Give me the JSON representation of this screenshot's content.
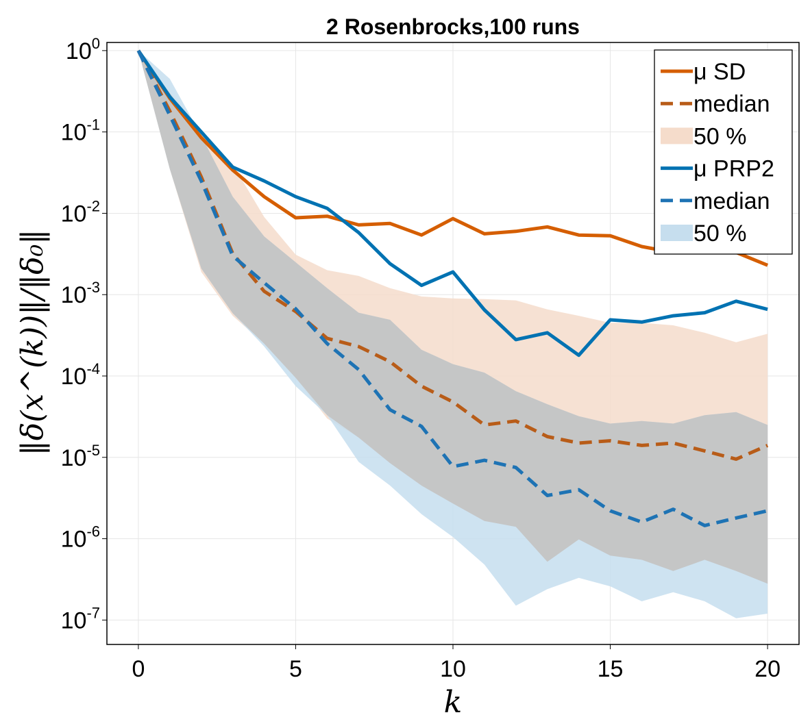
{
  "chart_data": {
    "type": "line",
    "title": "2 Rosenbrocks,100 runs",
    "xlabel": "k",
    "ylabel": "‖δ(x^(k))‖/‖δ₀‖",
    "y_scale": "log10",
    "xlim": [
      -1,
      21
    ],
    "ylim_log10": [
      -7.3,
      0.1
    ],
    "x_ticks": [
      0,
      5,
      10,
      15,
      20
    ],
    "y_ticks": [
      {
        "base": "10",
        "exp": "0",
        "value": 1
      },
      {
        "base": "10",
        "exp": "-1",
        "value": 0.1
      },
      {
        "base": "10",
        "exp": "-2",
        "value": 0.01
      },
      {
        "base": "10",
        "exp": "-3",
        "value": 0.001
      },
      {
        "base": "10",
        "exp": "-4",
        "value": 0.0001
      },
      {
        "base": "10",
        "exp": "-5",
        "value": 1e-05
      },
      {
        "base": "10",
        "exp": "-6",
        "value": 1e-06
      },
      {
        "base": "10",
        "exp": "-7",
        "value": 1e-07
      }
    ],
    "grid": true,
    "legend_position": "top-right",
    "x": [
      0,
      1,
      2,
      3,
      4,
      5,
      6,
      7,
      8,
      9,
      10,
      11,
      12,
      13,
      14,
      15,
      16,
      17,
      18,
      19,
      20
    ],
    "series": [
      {
        "name": "μ SD",
        "kind": "mean",
        "color": "#D55E00",
        "values": [
          1,
          0.26,
          0.085,
          0.034,
          0.016,
          0.0088,
          0.0092,
          0.0072,
          0.0075,
          0.0054,
          0.0086,
          0.0056,
          0.006,
          0.0068,
          0.0054,
          0.0053,
          0.0039,
          0.0033,
          0.0035,
          0.0033,
          0.0023
        ]
      },
      {
        "name": "median",
        "kind": "median",
        "color": "#B85C18",
        "values": [
          1,
          0.18,
          0.028,
          0.0032,
          0.0011,
          0.00062,
          0.00029,
          0.00023,
          0.00015,
          7.5e-05,
          4.8e-05,
          2.5e-05,
          2.8e-05,
          1.8e-05,
          1.5e-05,
          1.6e-05,
          1.4e-05,
          1.5e-05,
          1.2e-05,
          9.5e-06,
          1.4e-05
        ]
      },
      {
        "name": "50 %",
        "kind": "band",
        "color": "#F5DCCB",
        "lower": [
          1,
          0.035,
          0.0019,
          0.00055,
          0.00025,
          9.5e-05,
          3e-05,
          1.75e-05,
          8.5e-06,
          4.5e-06,
          2.7e-06,
          1.65e-06,
          1.4e-06,
          5.2e-07,
          9.8e-07,
          6.2e-07,
          5.5e-07,
          4e-07,
          5.5e-07,
          4e-07,
          2.8e-07
        ],
        "upper": [
          1,
          0.3,
          0.1,
          0.04,
          0.009,
          0.0031,
          0.002,
          0.0017,
          0.0012,
          0.00095,
          0.0009,
          0.00088,
          0.00085,
          0.00066,
          0.00055,
          0.00045,
          0.00045,
          0.00042,
          0.00034,
          0.00026,
          0.00033
        ]
      },
      {
        "name": "μ PRP2",
        "kind": "mean",
        "color": "#0072B2",
        "values": [
          1,
          0.27,
          0.1,
          0.037,
          0.025,
          0.016,
          0.0115,
          0.0058,
          0.0024,
          0.0013,
          0.0019,
          0.00065,
          0.00028,
          0.00034,
          0.00018,
          0.00049,
          0.00046,
          0.00055,
          0.0006,
          0.00083,
          0.00066
        ]
      },
      {
        "name": "median",
        "kind": "median",
        "color": "#1E73B4",
        "values": [
          1,
          0.16,
          0.025,
          0.003,
          0.0014,
          0.00067,
          0.00025,
          0.00012,
          3.85e-05,
          2.4e-05,
          7.7e-06,
          9.2e-06,
          7.5e-06,
          3.4e-06,
          4e-06,
          2.2e-06,
          1.6e-06,
          2.3e-06,
          1.45e-06,
          1.8e-06,
          2.2e-06
        ]
      },
      {
        "name": "50 %",
        "kind": "band",
        "color": "#C6DEEE",
        "lower": [
          1,
          0.035,
          0.0021,
          0.00059,
          0.00023,
          7.5e-05,
          3.3e-05,
          8.8e-06,
          4.5e-06,
          2e-06,
          1.05e-06,
          4.8e-07,
          1.5e-07,
          2.4e-07,
          3.3e-07,
          2.6e-07,
          1.7e-07,
          2.2e-07,
          1.7e-07,
          1.05e-07,
          1.2e-07
        ],
        "upper": [
          1,
          0.45,
          0.09,
          0.016,
          0.0052,
          0.0025,
          0.0012,
          0.0006,
          0.00049,
          0.00021,
          0.00014,
          0.00011,
          6.5e-05,
          4.5e-05,
          3.2e-05,
          2.6e-05,
          2.8e-05,
          2.6e-05,
          3.3e-05,
          3.6e-05,
          2.5e-05
        ]
      }
    ]
  }
}
